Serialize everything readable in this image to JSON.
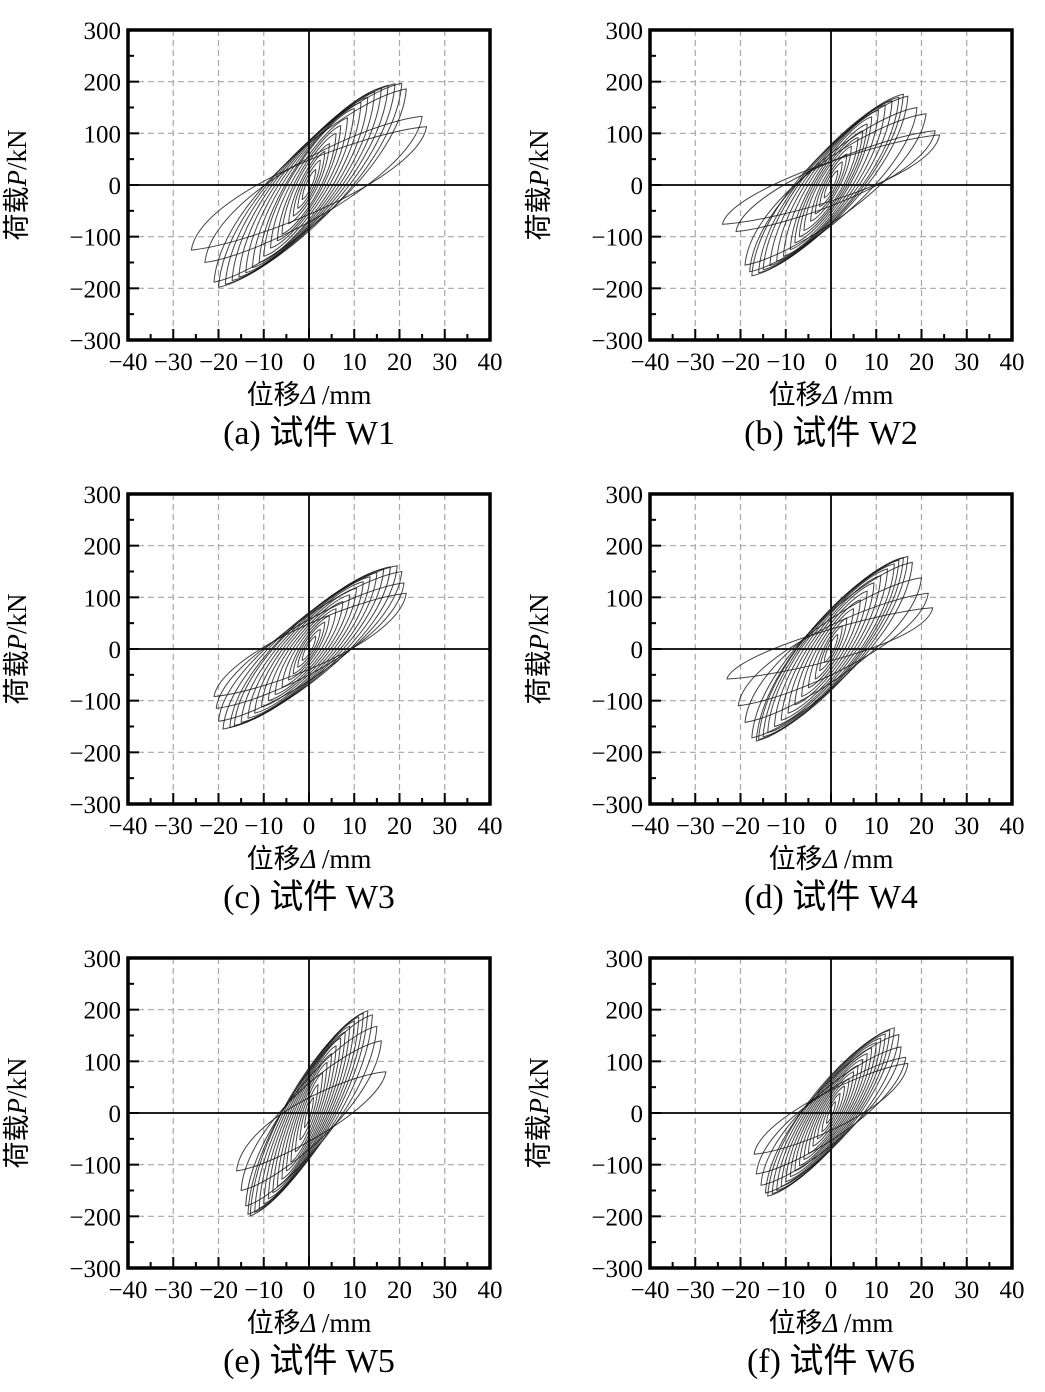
{
  "figure": {
    "description": "六个剪力墙试件滞回曲线 (hysteresis curves of six shear-wall specimens)",
    "background": "#ffffff"
  },
  "axes": {
    "xlabel": {
      "prefix": "位移",
      "italic": "Δ",
      "suffix": "/mm"
    },
    "ylabel": {
      "prefix": "荷载",
      "italic": "P",
      "suffix": "/kN"
    },
    "xlim": [
      -40,
      40
    ],
    "ylim": [
      -300,
      300
    ],
    "xticks": [
      -40,
      -30,
      -20,
      -10,
      0,
      10,
      20,
      30,
      40
    ],
    "yticks": [
      -300,
      -200,
      -100,
      0,
      100,
      200,
      300
    ],
    "x_minor_step": 5,
    "y_minor_step": 50,
    "grid": "dashed-major",
    "grid_color": "#a8a8a8",
    "axis_color": "#000000",
    "curve_color": "#141414"
  },
  "chart_data": [
    {
      "type": "line",
      "id": "a",
      "caption": "(a) 试件 W1",
      "specimen": "W1",
      "peak_load_kN": 197,
      "peak_disp_mm": 26,
      "cycles": [
        [
          1.5,
          30,
          -1.5,
          -28
        ],
        [
          2.5,
          48,
          -2.5,
          -45
        ],
        [
          3.5,
          65,
          -3.5,
          -60
        ],
        [
          4.5,
          80,
          -4.5,
          -75
        ],
        [
          6,
          100,
          -6,
          -95
        ],
        [
          7,
          115,
          -7,
          -108
        ],
        [
          8.5,
          130,
          -8.5,
          -122
        ],
        [
          10,
          148,
          -10,
          -138
        ],
        [
          11.5,
          160,
          -11,
          -150
        ],
        [
          13,
          170,
          -12.5,
          -160
        ],
        [
          14.5,
          180,
          -14,
          -170
        ],
        [
          16,
          188,
          -15.5,
          -178
        ],
        [
          17.5,
          193,
          -17,
          -185
        ],
        [
          19,
          196,
          -18.5,
          -192
        ],
        [
          20.5,
          197,
          -20,
          -198
        ],
        [
          21.5,
          186,
          -21,
          -188
        ],
        [
          25,
          133,
          -23,
          -150
        ],
        [
          26,
          113,
          -26,
          -126
        ]
      ]
    },
    {
      "type": "line",
      "id": "b",
      "caption": "(b) 试件 W2",
      "specimen": "W2",
      "peak_load_kN": 176,
      "peak_disp_mm": 24,
      "cycles": [
        [
          1.5,
          28,
          -1.5,
          -25
        ],
        [
          2.5,
          45,
          -2.5,
          -42
        ],
        [
          3.5,
          60,
          -3.5,
          -56
        ],
        [
          4.5,
          75,
          -4.5,
          -70
        ],
        [
          6,
          92,
          -6,
          -88
        ],
        [
          7,
          105,
          -7,
          -100
        ],
        [
          8,
          118,
          -8,
          -112
        ],
        [
          9,
          132,
          -9,
          -125
        ],
        [
          10.5,
          145,
          -10.5,
          -138
        ],
        [
          12,
          155,
          -12,
          -148
        ],
        [
          13.5,
          163,
          -13.5,
          -156
        ],
        [
          15,
          170,
          -15,
          -164
        ],
        [
          16,
          176,
          -16,
          -170
        ],
        [
          17,
          172,
          -17.5,
          -176
        ],
        [
          19,
          150,
          -18,
          -168
        ],
        [
          21,
          138,
          -19,
          -155
        ],
        [
          23,
          105,
          -21,
          -90
        ],
        [
          24,
          97,
          -24,
          -76
        ]
      ]
    },
    {
      "type": "line",
      "id": "c",
      "caption": "(c) 试件 W3",
      "specimen": "W3",
      "peak_load_kN": 161,
      "peak_disp_mm": 21.5,
      "cycles": [
        [
          1.5,
          25,
          -1.5,
          -22
        ],
        [
          2.5,
          38,
          -2.5,
          -35
        ],
        [
          3.5,
          52,
          -3.5,
          -48
        ],
        [
          4.5,
          64,
          -4.5,
          -60
        ],
        [
          6,
          78,
          -6,
          -74
        ],
        [
          7.5,
          92,
          -7.5,
          -88
        ],
        [
          9,
          105,
          -9,
          -100
        ],
        [
          10.5,
          118,
          -10.5,
          -112
        ],
        [
          12,
          130,
          -12,
          -124
        ],
        [
          13.5,
          140,
          -13.5,
          -134
        ],
        [
          15,
          148,
          -15,
          -142
        ],
        [
          16.5,
          155,
          -16.5,
          -148
        ],
        [
          18,
          159,
          -17.5,
          -152
        ],
        [
          19.5,
          161,
          -19,
          -155
        ],
        [
          20.5,
          150,
          -20,
          -140
        ],
        [
          21,
          128,
          -20.5,
          -115
        ],
        [
          21.5,
          108,
          -21,
          -92
        ]
      ]
    },
    {
      "type": "line",
      "id": "d",
      "caption": "(d) 试件 W4",
      "specimen": "W4",
      "peak_load_kN": 179,
      "peak_disp_mm": 23,
      "cycles": [
        [
          1.5,
          28,
          -1.5,
          -26
        ],
        [
          2.5,
          45,
          -2.5,
          -42
        ],
        [
          3.5,
          60,
          -3.5,
          -58
        ],
        [
          5,
          78,
          -5,
          -75
        ],
        [
          6.5,
          95,
          -6.5,
          -92
        ],
        [
          8,
          112,
          -8,
          -108
        ],
        [
          9.5,
          128,
          -9.5,
          -124
        ],
        [
          11,
          142,
          -11,
          -138
        ],
        [
          12.5,
          155,
          -12.5,
          -150
        ],
        [
          14,
          165,
          -14,
          -162
        ],
        [
          15,
          172,
          -15,
          -170
        ],
        [
          16,
          177,
          -16,
          -175
        ],
        [
          17,
          179,
          -16.5,
          -178
        ],
        [
          18,
          168,
          -17.5,
          -172
        ],
        [
          20,
          138,
          -19,
          -142
        ],
        [
          21.5,
          108,
          -20.5,
          -110
        ],
        [
          22.5,
          80,
          -23,
          -58
        ]
      ]
    },
    {
      "type": "line",
      "id": "e",
      "caption": "(e) 试件 W5",
      "specimen": "W5",
      "peak_load_kN": 199,
      "peak_disp_mm": 17,
      "cycles": [
        [
          1,
          30,
          -1,
          -28
        ],
        [
          2,
          55,
          -2,
          -52
        ],
        [
          3,
          78,
          -3,
          -75
        ],
        [
          4,
          98,
          -4,
          -95
        ],
        [
          5,
          115,
          -5,
          -112
        ],
        [
          6,
          130,
          -6,
          -128
        ],
        [
          7,
          145,
          -7,
          -142
        ],
        [
          8,
          157,
          -8,
          -154
        ],
        [
          9,
          168,
          -9,
          -166
        ],
        [
          10,
          178,
          -10,
          -176
        ],
        [
          11,
          186,
          -11,
          -185
        ],
        [
          12,
          193,
          -12,
          -192
        ],
        [
          13,
          198,
          -13,
          -199
        ],
        [
          14,
          190,
          -13.5,
          -196
        ],
        [
          15,
          168,
          -14,
          -180
        ],
        [
          16,
          140,
          -15,
          -150
        ],
        [
          17,
          80,
          -16,
          -112
        ]
      ]
    },
    {
      "type": "line",
      "id": "f",
      "caption": "(f) 试件 W6",
      "specimen": "W6",
      "peak_load_kN": 165,
      "peak_disp_mm": 17,
      "cycles": [
        [
          1,
          22,
          -1,
          -20
        ],
        [
          2,
          38,
          -2,
          -36
        ],
        [
          3,
          52,
          -3,
          -50
        ],
        [
          4,
          66,
          -4,
          -64
        ],
        [
          5,
          80,
          -5,
          -78
        ],
        [
          6,
          92,
          -6,
          -90
        ],
        [
          7,
          104,
          -7,
          -102
        ],
        [
          8,
          115,
          -8,
          -112
        ],
        [
          9,
          126,
          -9,
          -123
        ],
        [
          10,
          136,
          -10,
          -133
        ],
        [
          11,
          145,
          -11,
          -142
        ],
        [
          12,
          153,
          -12,
          -150
        ],
        [
          13,
          160,
          -13,
          -156
        ],
        [
          14,
          165,
          -14,
          -161
        ],
        [
          15,
          152,
          -14.5,
          -155
        ],
        [
          15.5,
          128,
          -15.5,
          -140
        ],
        [
          16.5,
          108,
          -16.5,
          -118
        ],
        [
          17,
          96,
          -17,
          -80
        ]
      ]
    }
  ]
}
